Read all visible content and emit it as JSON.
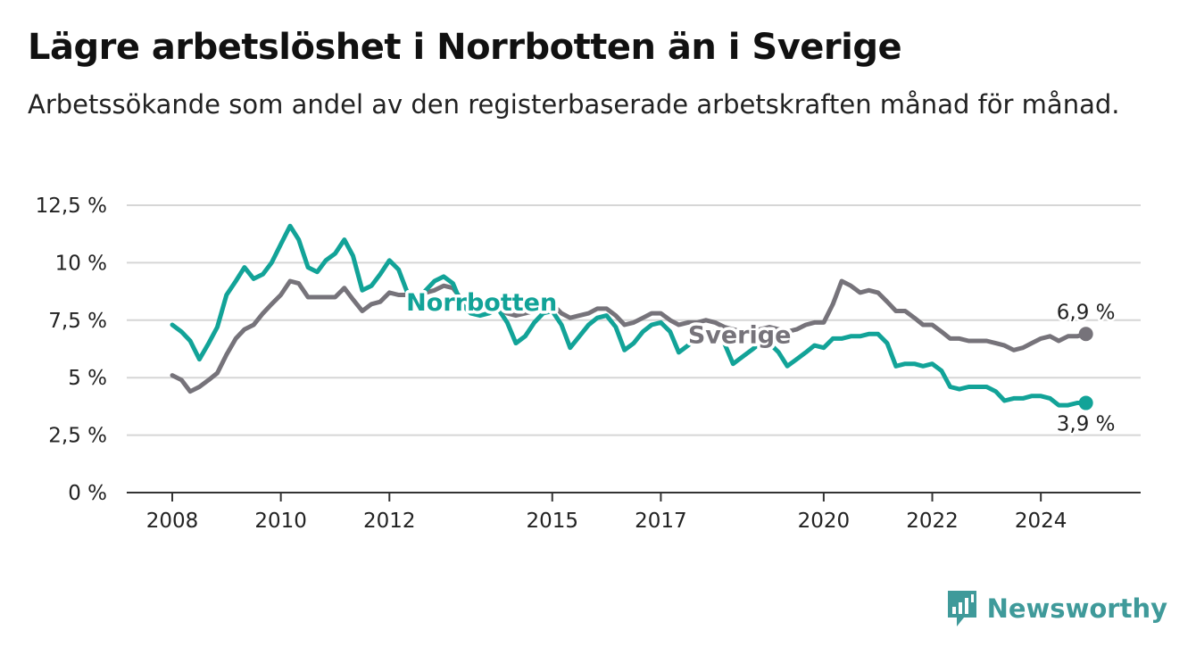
{
  "header": {
    "title": "Lägre arbetslöshet i Norrbotten än i Sverige",
    "subtitle": "Arbetssökande som andel av den registerbaserade arbetskraften månad för månad."
  },
  "brand": {
    "name": "Newsworthy",
    "icon": "bar-chart-speech-bubble-icon"
  },
  "chart_data": {
    "type": "line",
    "x_range": [
      2008,
      2025
    ],
    "x_ticks": [
      {
        "value": 2008,
        "label": "2008"
      },
      {
        "value": 2010,
        "label": "2010"
      },
      {
        "value": 2012,
        "label": "2012"
      },
      {
        "value": 2015,
        "label": "2015"
      },
      {
        "value": 2017,
        "label": "2017"
      },
      {
        "value": 2020,
        "label": "2020"
      },
      {
        "value": 2022,
        "label": "2022"
      },
      {
        "value": 2024,
        "label": "2024"
      }
    ],
    "ylim": [
      0,
      12.5
    ],
    "y_ticks": [
      {
        "value": 0,
        "label": "0 %"
      },
      {
        "value": 2.5,
        "label": "2,5 %"
      },
      {
        "value": 5,
        "label": "5 %"
      },
      {
        "value": 7.5,
        "label": "7,5 %"
      },
      {
        "value": 10,
        "label": "10 %"
      },
      {
        "value": 12.5,
        "label": "12,5 %"
      }
    ],
    "grid": "horizontal",
    "series": [
      {
        "name": "Sverige",
        "color": "#76737a",
        "end_label": "6,9 %",
        "label_pos": {
          "x": 2018.45,
          "y": 6.9
        },
        "points": [
          [
            2008.0,
            5.1
          ],
          [
            2008.17,
            4.9
          ],
          [
            2008.33,
            4.4
          ],
          [
            2008.5,
            4.6
          ],
          [
            2008.67,
            4.9
          ],
          [
            2008.83,
            5.2
          ],
          [
            2009.0,
            6.0
          ],
          [
            2009.17,
            6.7
          ],
          [
            2009.33,
            7.1
          ],
          [
            2009.5,
            7.3
          ],
          [
            2009.67,
            7.8
          ],
          [
            2009.83,
            8.2
          ],
          [
            2010.0,
            8.6
          ],
          [
            2010.17,
            9.2
          ],
          [
            2010.33,
            9.1
          ],
          [
            2010.5,
            8.5
          ],
          [
            2010.67,
            8.5
          ],
          [
            2010.83,
            8.5
          ],
          [
            2011.0,
            8.5
          ],
          [
            2011.17,
            8.9
          ],
          [
            2011.33,
            8.4
          ],
          [
            2011.5,
            7.9
          ],
          [
            2011.67,
            8.2
          ],
          [
            2011.83,
            8.3
          ],
          [
            2012.0,
            8.7
          ],
          [
            2012.17,
            8.6
          ],
          [
            2012.33,
            8.6
          ],
          [
            2012.5,
            8.4
          ],
          [
            2012.67,
            8.7
          ],
          [
            2012.83,
            8.8
          ],
          [
            2013.0,
            9.0
          ],
          [
            2013.17,
            8.9
          ],
          [
            2013.33,
            8.4
          ],
          [
            2013.5,
            8.3
          ],
          [
            2013.67,
            8.2
          ],
          [
            2013.83,
            8.0
          ],
          [
            2014.0,
            8.0
          ],
          [
            2014.17,
            7.8
          ],
          [
            2014.33,
            7.7
          ],
          [
            2014.5,
            7.8
          ],
          [
            2014.67,
            7.9
          ],
          [
            2014.83,
            8.0
          ],
          [
            2015.0,
            8.2
          ],
          [
            2015.17,
            7.8
          ],
          [
            2015.33,
            7.6
          ],
          [
            2015.5,
            7.7
          ],
          [
            2015.67,
            7.8
          ],
          [
            2015.83,
            8.0
          ],
          [
            2016.0,
            8.0
          ],
          [
            2016.17,
            7.7
          ],
          [
            2016.33,
            7.3
          ],
          [
            2016.5,
            7.4
          ],
          [
            2016.67,
            7.6
          ],
          [
            2016.83,
            7.8
          ],
          [
            2017.0,
            7.8
          ],
          [
            2017.17,
            7.5
          ],
          [
            2017.33,
            7.3
          ],
          [
            2017.5,
            7.4
          ],
          [
            2017.67,
            7.4
          ],
          [
            2017.83,
            7.5
          ],
          [
            2018.0,
            7.4
          ],
          [
            2018.17,
            7.2
          ],
          [
            2018.33,
            7.1
          ],
          [
            2018.5,
            7.0
          ],
          [
            2018.67,
            7.0
          ],
          [
            2018.83,
            7.1
          ],
          [
            2019.0,
            7.2
          ],
          [
            2019.17,
            7.1
          ],
          [
            2019.33,
            7.0
          ],
          [
            2019.5,
            7.1
          ],
          [
            2019.67,
            7.3
          ],
          [
            2019.83,
            7.4
          ],
          [
            2020.0,
            7.4
          ],
          [
            2020.17,
            8.2
          ],
          [
            2020.33,
            9.2
          ],
          [
            2020.5,
            9.0
          ],
          [
            2020.67,
            8.7
          ],
          [
            2020.83,
            8.8
          ],
          [
            2021.0,
            8.7
          ],
          [
            2021.17,
            8.3
          ],
          [
            2021.33,
            7.9
          ],
          [
            2021.5,
            7.9
          ],
          [
            2021.67,
            7.6
          ],
          [
            2021.83,
            7.3
          ],
          [
            2022.0,
            7.3
          ],
          [
            2022.17,
            7.0
          ],
          [
            2022.33,
            6.7
          ],
          [
            2022.5,
            6.7
          ],
          [
            2022.67,
            6.6
          ],
          [
            2022.83,
            6.6
          ],
          [
            2023.0,
            6.6
          ],
          [
            2023.17,
            6.5
          ],
          [
            2023.33,
            6.4
          ],
          [
            2023.5,
            6.2
          ],
          [
            2023.67,
            6.3
          ],
          [
            2023.83,
            6.5
          ],
          [
            2024.0,
            6.7
          ],
          [
            2024.17,
            6.8
          ],
          [
            2024.33,
            6.6
          ],
          [
            2024.5,
            6.8
          ],
          [
            2024.67,
            6.8
          ],
          [
            2024.83,
            6.9
          ]
        ]
      },
      {
        "name": "Norrbotten",
        "color": "#12a398",
        "end_label": "3,9 %",
        "label_pos": {
          "x": 2013.7,
          "y": 8.3
        },
        "points": [
          [
            2008.0,
            7.3
          ],
          [
            2008.17,
            7.0
          ],
          [
            2008.33,
            6.6
          ],
          [
            2008.5,
            5.8
          ],
          [
            2008.67,
            6.5
          ],
          [
            2008.83,
            7.2
          ],
          [
            2009.0,
            8.6
          ],
          [
            2009.17,
            9.2
          ],
          [
            2009.33,
            9.8
          ],
          [
            2009.5,
            9.3
          ],
          [
            2009.67,
            9.5
          ],
          [
            2009.83,
            10.0
          ],
          [
            2010.0,
            10.8
          ],
          [
            2010.17,
            11.6
          ],
          [
            2010.33,
            11.0
          ],
          [
            2010.5,
            9.8
          ],
          [
            2010.67,
            9.6
          ],
          [
            2010.83,
            10.1
          ],
          [
            2011.0,
            10.4
          ],
          [
            2011.17,
            11.0
          ],
          [
            2011.33,
            10.3
          ],
          [
            2011.5,
            8.8
          ],
          [
            2011.67,
            9.0
          ],
          [
            2011.83,
            9.5
          ],
          [
            2012.0,
            10.1
          ],
          [
            2012.17,
            9.7
          ],
          [
            2012.33,
            8.7
          ],
          [
            2012.5,
            8.3
          ],
          [
            2012.67,
            8.8
          ],
          [
            2012.83,
            9.2
          ],
          [
            2013.0,
            9.4
          ],
          [
            2013.17,
            9.1
          ],
          [
            2013.33,
            8.2
          ],
          [
            2013.5,
            7.8
          ],
          [
            2013.67,
            7.7
          ],
          [
            2013.83,
            7.8
          ],
          [
            2014.0,
            8.0
          ],
          [
            2014.17,
            7.4
          ],
          [
            2014.33,
            6.5
          ],
          [
            2014.5,
            6.8
          ],
          [
            2014.67,
            7.4
          ],
          [
            2014.83,
            7.8
          ],
          [
            2015.0,
            7.9
          ],
          [
            2015.17,
            7.3
          ],
          [
            2015.33,
            6.3
          ],
          [
            2015.5,
            6.8
          ],
          [
            2015.67,
            7.3
          ],
          [
            2015.83,
            7.6
          ],
          [
            2016.0,
            7.7
          ],
          [
            2016.17,
            7.2
          ],
          [
            2016.33,
            6.2
          ],
          [
            2016.5,
            6.5
          ],
          [
            2016.67,
            7.0
          ],
          [
            2016.83,
            7.3
          ],
          [
            2017.0,
            7.4
          ],
          [
            2017.17,
            7.0
          ],
          [
            2017.33,
            6.1
          ],
          [
            2017.5,
            6.4
          ],
          [
            2017.67,
            6.7
          ],
          [
            2017.83,
            7.0
          ],
          [
            2018.0,
            7.0
          ],
          [
            2018.17,
            6.5
          ],
          [
            2018.33,
            5.6
          ],
          [
            2018.5,
            5.9
          ],
          [
            2018.67,
            6.2
          ],
          [
            2018.83,
            6.5
          ],
          [
            2019.0,
            6.5
          ],
          [
            2019.17,
            6.1
          ],
          [
            2019.33,
            5.5
          ],
          [
            2019.5,
            5.8
          ],
          [
            2019.67,
            6.1
          ],
          [
            2019.83,
            6.4
          ],
          [
            2020.0,
            6.3
          ],
          [
            2020.17,
            6.7
          ],
          [
            2020.33,
            6.7
          ],
          [
            2020.5,
            6.8
          ],
          [
            2020.67,
            6.8
          ],
          [
            2020.83,
            6.9
          ],
          [
            2021.0,
            6.9
          ],
          [
            2021.17,
            6.5
          ],
          [
            2021.33,
            5.5
          ],
          [
            2021.5,
            5.6
          ],
          [
            2021.67,
            5.6
          ],
          [
            2021.83,
            5.5
          ],
          [
            2022.0,
            5.6
          ],
          [
            2022.17,
            5.3
          ],
          [
            2022.33,
            4.6
          ],
          [
            2022.5,
            4.5
          ],
          [
            2022.67,
            4.6
          ],
          [
            2022.83,
            4.6
          ],
          [
            2023.0,
            4.6
          ],
          [
            2023.17,
            4.4
          ],
          [
            2023.33,
            4.0
          ],
          [
            2023.5,
            4.1
          ],
          [
            2023.67,
            4.1
          ],
          [
            2023.83,
            4.2
          ],
          [
            2024.0,
            4.2
          ],
          [
            2024.17,
            4.1
          ],
          [
            2024.33,
            3.8
          ],
          [
            2024.5,
            3.8
          ],
          [
            2024.67,
            3.9
          ],
          [
            2024.83,
            3.9
          ]
        ]
      }
    ]
  }
}
